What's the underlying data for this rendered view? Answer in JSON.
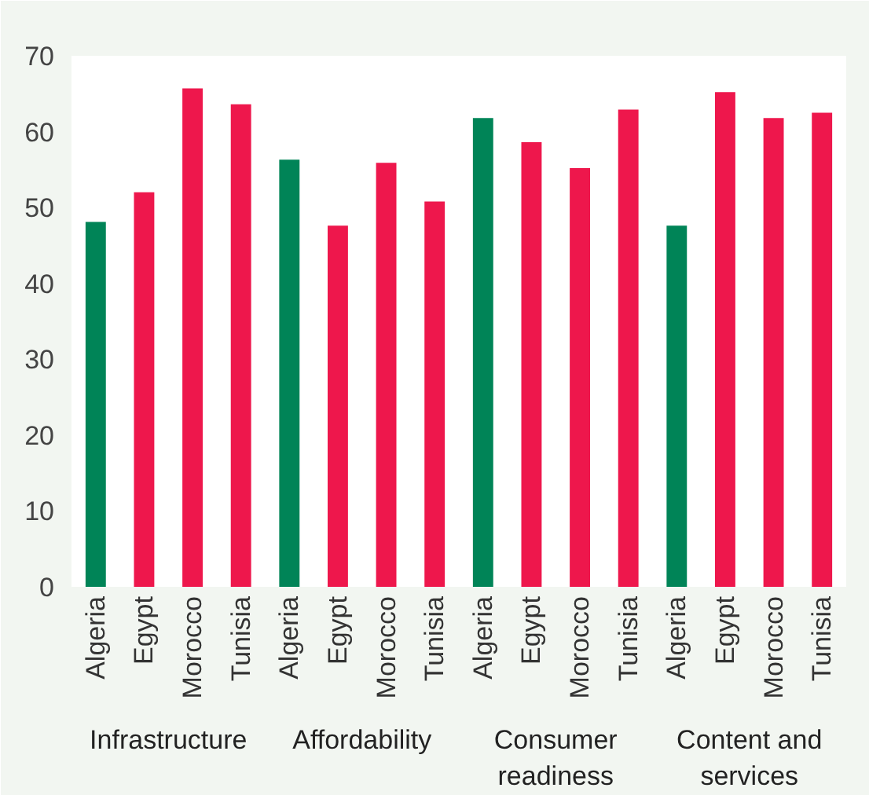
{
  "chart_data": {
    "type": "bar",
    "categories": [
      "Infrastructure",
      "Affordability",
      "Consumer readiness",
      "Content and services"
    ],
    "series": [
      {
        "name": "Algeria",
        "color": "#008457",
        "values": [
          48.1,
          56.3,
          61.8,
          47.6
        ]
      },
      {
        "name": "Egypt",
        "color": "#ee174c",
        "values": [
          52.0,
          47.6,
          58.6,
          65.2
        ]
      },
      {
        "name": "Morocco",
        "color": "#ee174c",
        "values": [
          65.7,
          55.9,
          55.2,
          61.8
        ]
      },
      {
        "name": "Tunisia",
        "color": "#ee174c",
        "values": [
          63.6,
          50.8,
          62.9,
          62.5
        ]
      }
    ],
    "ylim": [
      0,
      70
    ],
    "yticks": [
      0,
      10,
      20,
      30,
      40,
      50,
      60,
      70
    ],
    "grid": false,
    "legend": false
  }
}
